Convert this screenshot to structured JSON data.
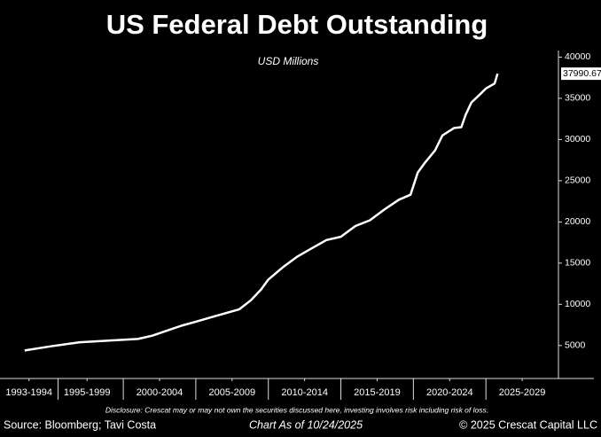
{
  "chart_data": {
    "type": "line",
    "title": "US Federal Debt Outstanding",
    "subtitle": "USD Millions",
    "disclosure": "Disclosure: Crescat may or may not own the securities discussed here, investing involves risk including risk of loss.",
    "source": "Source: Bloomberg; Tavi Costa",
    "chart_date": "Chart As of 10/24/2025",
    "copyright": "© 2025 Crescat Capital LLC",
    "x": [
      1993.2,
      1995,
      1997,
      1999,
      2001,
      2002,
      2003,
      2004,
      2005,
      2006,
      2007,
      2008,
      2008.8,
      2009.5,
      2010,
      2011,
      2012,
      2013,
      2014,
      2015,
      2016,
      2017,
      2018,
      2019,
      2019.8,
      2020.3,
      2020.8,
      2021.5,
      2022,
      2022.8,
      2023.3,
      2023.6,
      2024,
      2024.6,
      2025,
      2025.6,
      2025.8
    ],
    "series": [
      {
        "name": "US Federal Debt Outstanding",
        "color": "#ffffff",
        "values": [
          4400,
          4900,
          5400,
          5600,
          5800,
          6200,
          6800,
          7400,
          7900,
          8400,
          8900,
          9400,
          10500,
          11800,
          13000,
          14500,
          15800,
          16800,
          17800,
          18200,
          19500,
          20200,
          21500,
          22700,
          23300,
          26000,
          27200,
          28700,
          30500,
          31400,
          31500,
          33000,
          34500,
          35500,
          36200,
          36800,
          37990.67
        ]
      }
    ],
    "xlim": [
      1991.5,
      2030
    ],
    "xticks": [
      {
        "value": 1993.5,
        "label": "1993-1994"
      },
      {
        "value": 1997.5,
        "label": "1995-1999"
      },
      {
        "value": 2002.5,
        "label": "2000-2004"
      },
      {
        "value": 2007.5,
        "label": "2005-2009"
      },
      {
        "value": 2012.5,
        "label": "2010-2014"
      },
      {
        "value": 2017.5,
        "label": "2015-2019"
      },
      {
        "value": 2022.5,
        "label": "2020-2024"
      },
      {
        "value": 2027.5,
        "label": "2025-2029"
      }
    ],
    "ylim": [
      1000,
      40800
    ],
    "yticks": [
      5000,
      10000,
      15000,
      20000,
      25000,
      30000,
      35000,
      40000
    ]
  }
}
